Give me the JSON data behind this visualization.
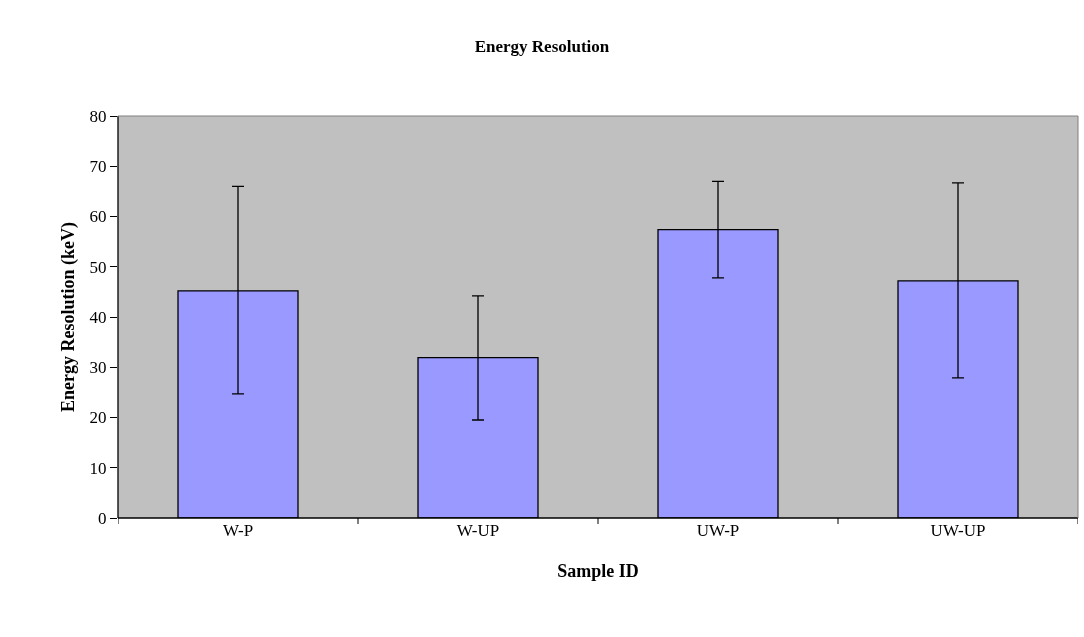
{
  "chart_data": {
    "type": "bar",
    "title": "Energy Resolution",
    "xlabel": "Sample ID",
    "ylabel": "Energy Resolution (keV)",
    "categories": [
      "W-P",
      "W-UP",
      "UW-P",
      "UW-UP"
    ],
    "values": [
      45.2,
      31.9,
      57.4,
      47.2
    ],
    "errors": [
      [
        24.7,
        66.0
      ],
      [
        19.5,
        44.2
      ],
      [
        47.8,
        67.0
      ],
      [
        27.9,
        66.7
      ]
    ],
    "color": "#9999ff",
    "ylim": [
      0,
      80
    ],
    "yticks": [
      0,
      10,
      20,
      30,
      40,
      50,
      60,
      70,
      80
    ],
    "grid": false
  }
}
